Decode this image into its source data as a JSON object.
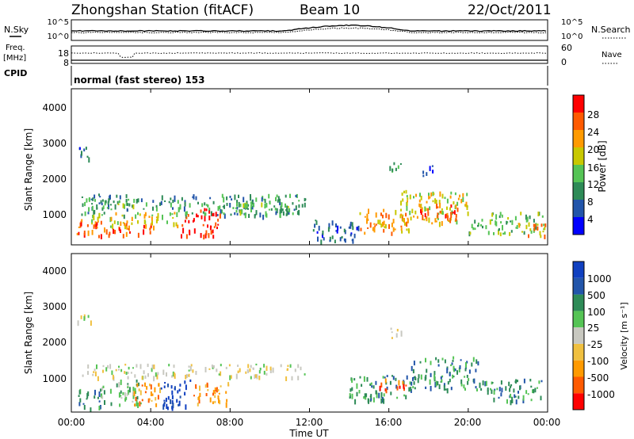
{
  "header": {
    "station": "Zhongshan Station (fitACF)",
    "beam": "Beam 10",
    "date": "22/Oct/2011"
  },
  "strips": {
    "nsky_label": "N.Sky",
    "nsearch_label": "N.Search",
    "n_ticks_left": [
      "10^5",
      "10^0"
    ],
    "n_ticks_right": [
      "10^5",
      "10^0"
    ],
    "freq_label_line1": "Freq.",
    "freq_label_line2": "[MHz]",
    "freq_ticks": [
      "18",
      "8"
    ],
    "nave_label": "Nave",
    "nave_ticks": [
      "60",
      "0"
    ],
    "cpid_label": "CPID",
    "cpid_text": "normal (fast stereo) 153"
  },
  "colors": {
    "power": [
      "#0000ff",
      "#2255aa",
      "#2e8b57",
      "#55c455",
      "#c8c800",
      "#ff9a00",
      "#ff5a00",
      "#ff0000"
    ],
    "velocity": [
      "#ff0000",
      "#ff5a00",
      "#ff9a00",
      "#f0c040",
      "#c8c8c0",
      "#55c455",
      "#2e8b57",
      "#2255aa",
      "#1040c0"
    ]
  },
  "chart_data": [
    {
      "type": "heatmap",
      "panel": "power",
      "ylabel": "Slant Range [km]",
      "yticks": [
        "4000",
        "3000",
        "2000",
        "1000"
      ],
      "ylim": [
        180,
        4500
      ],
      "xticks": [
        "00:00",
        "04:00",
        "08:00",
        "12:00",
        "16:00",
        "20:00",
        "00:00"
      ],
      "xlim_hours": [
        0,
        24
      ],
      "colorbar_label": "Power [dB]",
      "colorbar_ticks": [
        "28",
        "24",
        "20",
        "16",
        "12",
        "8",
        "4"
      ],
      "colorbar_range": [
        0,
        30
      ],
      "regions": [
        {
          "t": [
            0.5,
            11.8
          ],
          "r": [
            1000,
            1600
          ],
          "level": 2
        },
        {
          "t": [
            0.5,
            3.2
          ],
          "r": [
            1200,
            1500
          ],
          "level": 3
        },
        {
          "t": [
            1.0,
            5.5
          ],
          "r": [
            700,
            1100
          ],
          "level": 4
        },
        {
          "t": [
            1.5,
            4.0
          ],
          "r": [
            450,
            800
          ],
          "level": 6
        },
        {
          "t": [
            5.5,
            7.5
          ],
          "r": [
            450,
            1200
          ],
          "level": 7
        },
        {
          "t": [
            0.2,
            1.5
          ],
          "r": [
            400,
            900
          ],
          "level": 6
        },
        {
          "t": [
            8.0,
            11.5
          ],
          "r": [
            1100,
            1400
          ],
          "level": 3
        },
        {
          "t": [
            12.0,
            14.5
          ],
          "r": [
            300,
            900
          ],
          "level": 1
        },
        {
          "t": [
            14.5,
            17.0
          ],
          "r": [
            500,
            1200
          ],
          "level": 5
        },
        {
          "t": [
            16.5,
            20.0
          ],
          "r": [
            800,
            1700
          ],
          "level": 4
        },
        {
          "t": [
            17.5,
            19.5
          ],
          "r": [
            900,
            1400
          ],
          "level": 6
        },
        {
          "t": [
            20.0,
            23.8
          ],
          "r": [
            500,
            1100
          ],
          "level": 3
        },
        {
          "t": [
            22.5,
            23.9
          ],
          "r": [
            450,
            800
          ],
          "level": 5
        },
        {
          "t": [
            0.3,
            1.2
          ],
          "r": [
            2600,
            2900
          ],
          "level": 1
        },
        {
          "t": [
            15.8,
            16.6
          ],
          "r": [
            2200,
            2500
          ],
          "level": 2
        },
        {
          "t": [
            17.5,
            18.2
          ],
          "r": [
            2100,
            2400
          ],
          "level": 1
        }
      ]
    },
    {
      "type": "heatmap",
      "panel": "velocity",
      "ylabel": "Slant Range [km]",
      "yticks": [
        "4000",
        "3000",
        "2000",
        "1000"
      ],
      "ylim": [
        180,
        4500
      ],
      "xticks": [
        "00:00",
        "04:00",
        "08:00",
        "12:00",
        "16:00",
        "20:00",
        "00:00"
      ],
      "xlim_hours": [
        0,
        24
      ],
      "xlabel": "Time UT",
      "colorbar_label": "Velocity [m s⁻¹]",
      "colorbar_ticks": [
        "1000",
        "500",
        "100",
        "25",
        "-25",
        "-100",
        "-500",
        "-1000"
      ],
      "colorbar_range": [
        -1200,
        1200
      ],
      "regions": [
        {
          "t": [
            0.5,
            11.8
          ],
          "r": [
            1150,
            1500
          ],
          "level": 4
        },
        {
          "t": [
            0.3,
            1.5
          ],
          "r": [
            300,
            900
          ],
          "level": 6
        },
        {
          "t": [
            1.5,
            3.5
          ],
          "r": [
            400,
            1100
          ],
          "level": 5
        },
        {
          "t": [
            3.0,
            4.5
          ],
          "r": [
            400,
            1000
          ],
          "level": 2
        },
        {
          "t": [
            4.5,
            6.0
          ],
          "r": [
            300,
            1100
          ],
          "level": 8
        },
        {
          "t": [
            6.0,
            8.0
          ],
          "r": [
            400,
            1000
          ],
          "level": 2
        },
        {
          "t": [
            0.3,
            1.0
          ],
          "r": [
            2600,
            2900
          ],
          "level": 4
        },
        {
          "t": [
            14.0,
            17.0
          ],
          "r": [
            500,
            1200
          ],
          "level": 6
        },
        {
          "t": [
            15.5,
            17.0
          ],
          "r": [
            800,
            1100
          ],
          "level": 1
        },
        {
          "t": [
            17.0,
            20.5
          ],
          "r": [
            800,
            1700
          ],
          "level": 6
        },
        {
          "t": [
            20.5,
            23.8
          ],
          "r": [
            500,
            1100
          ],
          "level": 6
        },
        {
          "t": [
            16.0,
            16.8
          ],
          "r": [
            2200,
            2500
          ],
          "level": 4
        }
      ]
    }
  ]
}
